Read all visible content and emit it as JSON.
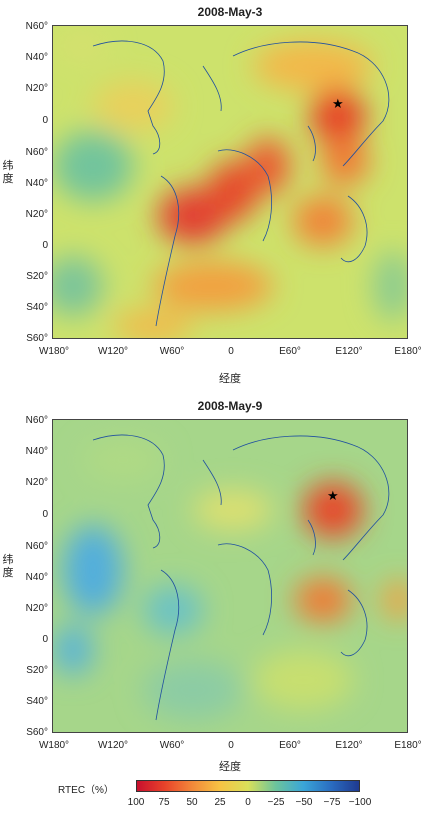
{
  "panels": [
    {
      "title": "2008-May-3",
      "ylabel": "纬度",
      "xlabel": "经度",
      "yticks": [
        "N60°",
        "N40°",
        "N20°",
        "0",
        "N60°",
        "N40°",
        "N20°",
        "0",
        "S20°",
        "S40°",
        "S60°"
      ],
      "xticks": [
        "W180°",
        "W120°",
        "W60°",
        "0",
        "E60°",
        "E120°",
        "E180°"
      ],
      "star_label": "★"
    },
    {
      "title": "2008-May-9",
      "ylabel": "纬度",
      "xlabel": "经度",
      "yticks": [
        "N60°",
        "N40°",
        "N20°",
        "0",
        "N60°",
        "N40°",
        "N20°",
        "0",
        "S20°",
        "S40°",
        "S60°"
      ],
      "xticks": [
        "W180°",
        "W120°",
        "W60°",
        "0",
        "E60°",
        "E120°",
        "E180°"
      ],
      "star_label": "★"
    }
  ],
  "colorbar": {
    "label": "RTEC（%）",
    "ticks": [
      "100",
      "75",
      "50",
      "25",
      "0",
      "−25",
      "−50",
      "−75",
      "−100"
    ],
    "colors": [
      "#c8102e",
      "#e8432a",
      "#f2893a",
      "#f7c444",
      "#d9e05a",
      "#6cc49c",
      "#3aa5d8",
      "#2a6cc0",
      "#1f3a90"
    ]
  },
  "colors": {
    "background_field": "#cfe070",
    "coast": "#1f4fa0"
  }
}
